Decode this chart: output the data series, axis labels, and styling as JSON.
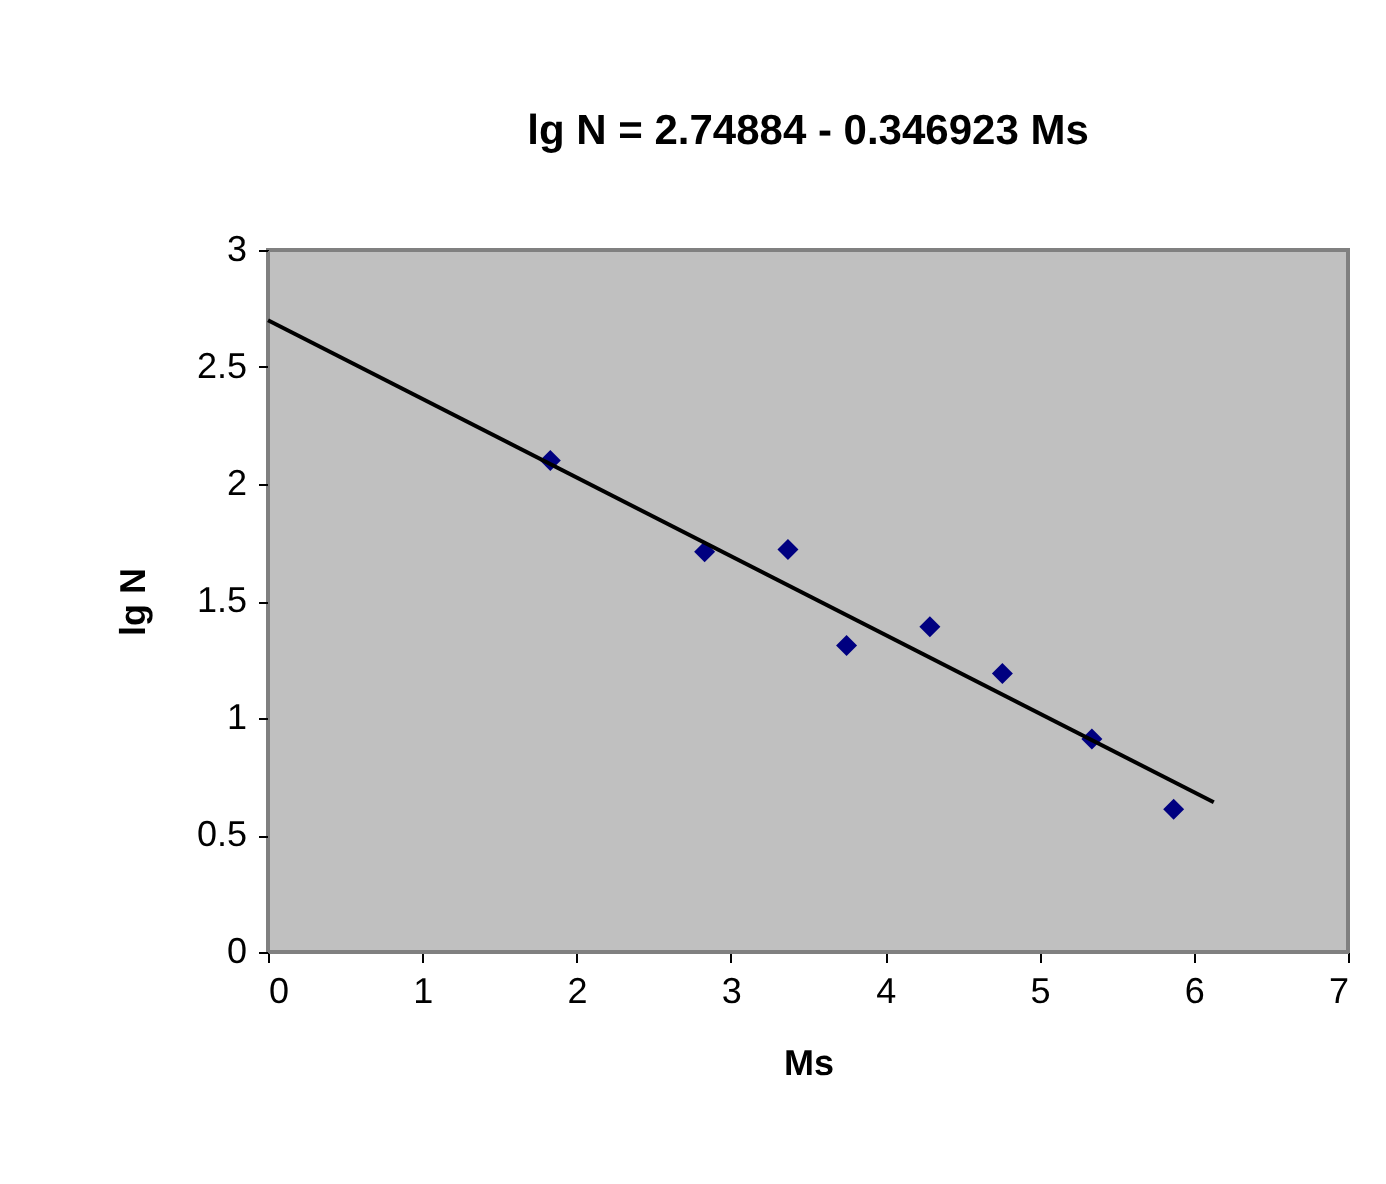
{
  "chart_data": {
    "type": "scatter",
    "title": "lg N = 2.74884 - 0.346923 Ms",
    "xlabel": "Ms",
    "ylabel": "lg N",
    "xlim": [
      0,
      7
    ],
    "xticks": [
      0,
      1,
      2,
      3,
      4,
      5,
      6,
      7
    ],
    "ylim": [
      0,
      3
    ],
    "yticks": [
      0,
      0.5,
      1,
      1.5,
      2,
      2.5,
      3
    ],
    "grid": false,
    "series": [
      {
        "color": "#000080",
        "marker": "diamond",
        "x": [
          1.83,
          2.83,
          3.37,
          3.75,
          4.29,
          4.76,
          5.34,
          5.87
        ],
        "values": [
          2.1,
          1.71,
          1.72,
          1.31,
          1.39,
          1.19,
          0.91,
          0.61
        ]
      },
      {
        "type": "line",
        "color": "#000000",
        "marker": "none",
        "line_style": "solid",
        "x": [
          0,
          6.13
        ],
        "values": [
          2.7,
          0.64
        ]
      }
    ]
  }
}
